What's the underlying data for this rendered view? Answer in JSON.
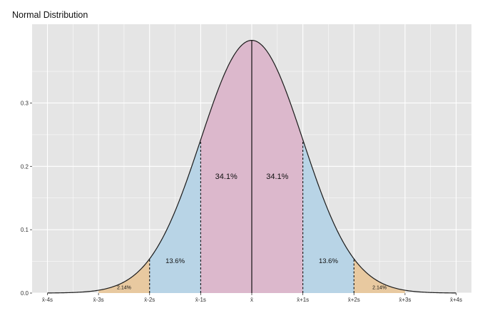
{
  "chart_data": {
    "type": "area",
    "title": "Normal Distribution",
    "xlabel": "",
    "ylabel": "",
    "xlim": [
      -4.3,
      4.3
    ],
    "ylim": [
      0,
      0.4
    ],
    "grid": true,
    "x_ticks": [
      -4,
      -3,
      -2,
      -1,
      0,
      1,
      2,
      3,
      4
    ],
    "x_tick_labels": [
      "x̄-4s",
      "x̄-3s",
      "x̄-2s",
      "x̄-1s",
      "x̄",
      "x̄+1s",
      "x̄+2s",
      "x̄+3s",
      "x̄+4s"
    ],
    "y_ticks": [
      0,
      0.1,
      0.2,
      0.3
    ],
    "y_tick_labels": [
      "0.0",
      "0.1",
      "0.2",
      "0.3"
    ],
    "curve": {
      "function": "standard normal density",
      "x_range": [
        -4,
        4
      ]
    },
    "regions": [
      {
        "from": -3,
        "to": -2,
        "color": "#e8c9a0",
        "label": "2.14%"
      },
      {
        "from": -2,
        "to": -1,
        "color": "#b8d4e6",
        "label": "13.6%"
      },
      {
        "from": -1,
        "to": 0,
        "color": "#dcb8cc",
        "label": "34.1%"
      },
      {
        "from": 0,
        "to": 1,
        "color": "#dcb8cc",
        "label": "34.1%"
      },
      {
        "from": 1,
        "to": 2,
        "color": "#b8d4e6",
        "label": "13.6%"
      },
      {
        "from": 2,
        "to": 3,
        "color": "#e8c9a0",
        "label": "2.14%"
      }
    ],
    "dashed_lines_at": [
      -2,
      -1,
      1,
      2
    ],
    "solid_line_at": 0
  },
  "colors": {
    "panel_background": "#e5e5e5",
    "grid": "#ffffff",
    "curve": "#1a1a1a"
  }
}
